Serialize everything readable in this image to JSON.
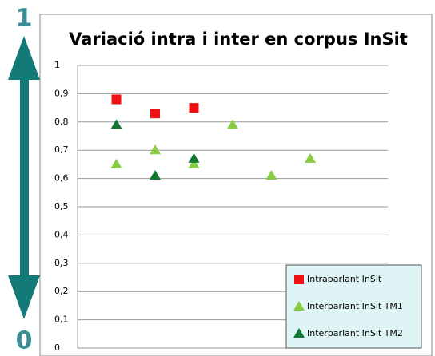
{
  "scale_top": "1",
  "scale_bottom": "0",
  "chart_data": {
    "type": "scatter",
    "title": "Variació intra i inter en corpus InSit",
    "xlim": [
      0,
      8
    ],
    "ylim": [
      0,
      1
    ],
    "yticks": [
      0,
      {
        "value": 0.1,
        "label": "0,1"
      },
      {
        "value": 0.2,
        "label": "0,2"
      },
      {
        "value": 0.3,
        "label": "0,3"
      },
      {
        "value": 0.4,
        "label": "0,4"
      },
      {
        "value": 0.5,
        "label": "0,5"
      },
      {
        "value": 0.6,
        "label": "0,6"
      },
      {
        "value": 0.7,
        "label": "0,7"
      },
      {
        "value": 0.8,
        "label": "0,8"
      },
      {
        "value": 0.9,
        "label": "0,9"
      },
      1
    ],
    "grid": true,
    "legend": "lower right",
    "series": [
      {
        "name": "Intraparlant InSit",
        "color": "#ee1111",
        "marker": "square",
        "x": [
          1,
          2,
          3
        ],
        "values": [
          0.88,
          0.83,
          0.85
        ]
      },
      {
        "name": "Interparlant InSit TM1",
        "color": "#88cc44",
        "marker": "triangle",
        "x": [
          1,
          2,
          3,
          4,
          5,
          6
        ],
        "values": [
          0.65,
          0.7,
          0.65,
          0.79,
          0.61,
          0.67
        ]
      },
      {
        "name": "Interparlant InSit TM2",
        "color": "#117733",
        "marker": "triangle",
        "x": [
          1,
          2,
          3
        ],
        "values": [
          0.79,
          0.61,
          0.67
        ]
      }
    ]
  }
}
